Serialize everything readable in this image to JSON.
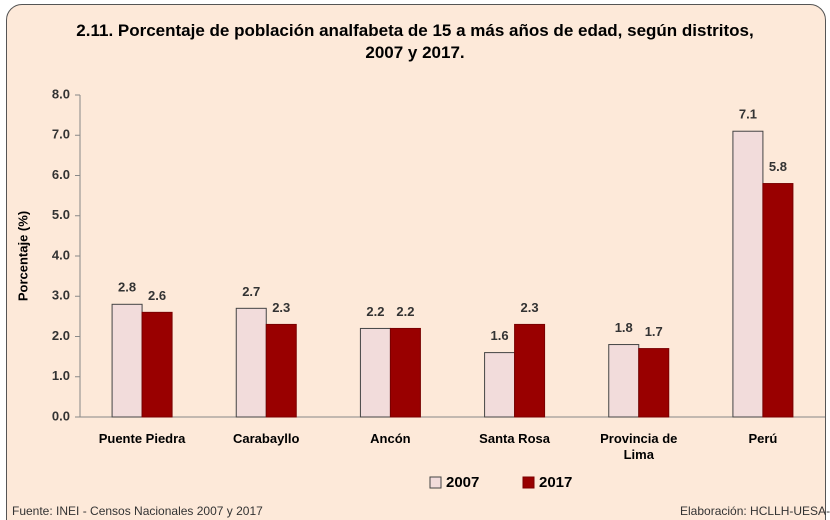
{
  "chart_data": {
    "type": "bar",
    "title": "2.11. Porcentaje de población analfabeta de 15 a más años de edad, según distritos, 2007 y 2017.",
    "ylabel": "Porcentaje (%)",
    "categories": [
      "Puente Piedra",
      "Carabayllo",
      "Ancón",
      "Santa Rosa",
      "Provincia de Lima",
      "Perú"
    ],
    "series": [
      {
        "name": "2007",
        "color": "#f2dcdb",
        "values": [
          2.8,
          2.7,
          2.2,
          1.6,
          1.8,
          7.1
        ]
      },
      {
        "name": "2017",
        "color": "#990000",
        "values": [
          2.6,
          2.3,
          2.2,
          2.3,
          1.7,
          5.8
        ]
      }
    ],
    "ylim": [
      0,
      8
    ],
    "yticks": [
      {
        "value": 0,
        "label": "0.0"
      },
      {
        "value": 1,
        "label": "1.0"
      },
      {
        "value": 2,
        "label": "2.0"
      },
      {
        "value": 3,
        "label": "3.0"
      },
      {
        "value": 4,
        "label": "4.0"
      },
      {
        "value": 5,
        "label": "5.0"
      },
      {
        "value": 6,
        "label": "6.0"
      },
      {
        "value": 7,
        "label": "7.0"
      },
      {
        "value": 8,
        "label": "8.0"
      }
    ],
    "legend": "bottom"
  },
  "footer": {
    "source": "Fuente: INEI - Censos Nacionales 2007 y 2017",
    "credit": "Elaboración: HCLLH-UESA-"
  }
}
